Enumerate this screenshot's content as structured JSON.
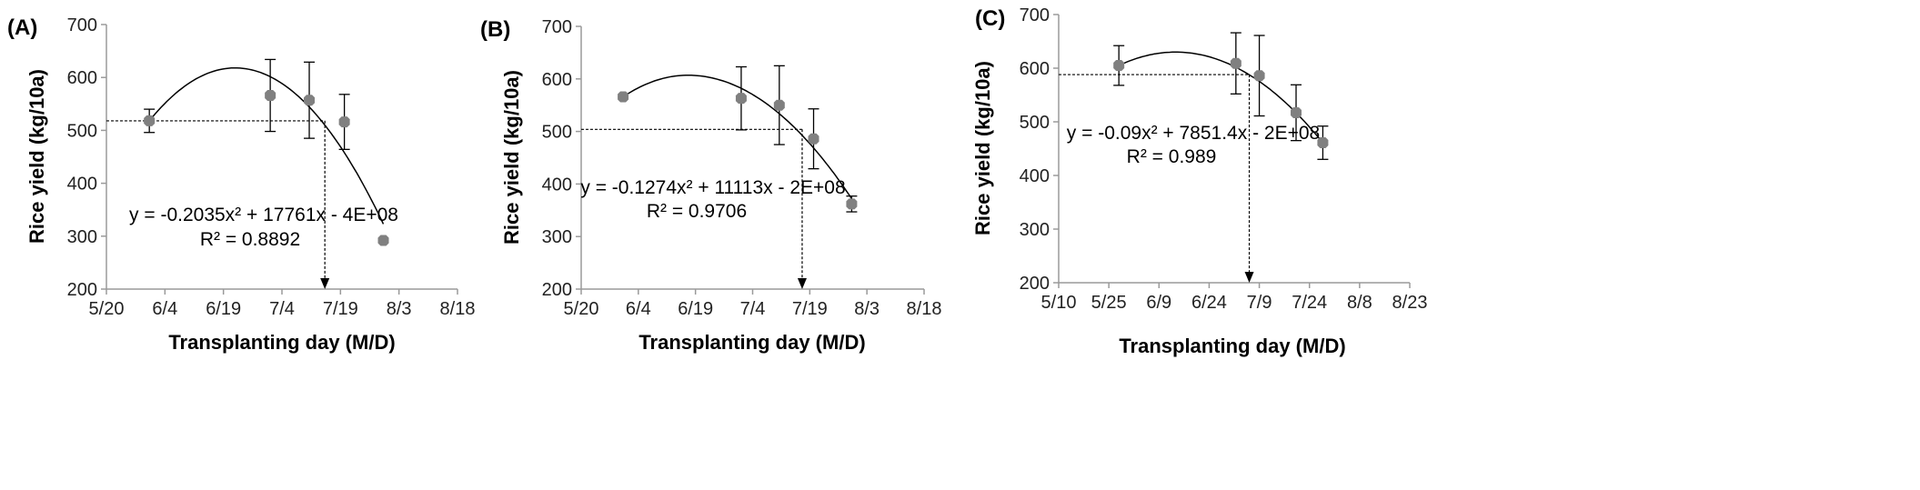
{
  "chart_data": [
    {
      "type": "scatter",
      "panel_label": "(A)",
      "xlabel": "Transplanting day (M/D)",
      "ylabel": "Rice yield (kg/10a)",
      "x_ticks": [
        "5/20",
        "6/4",
        "6/19",
        "7/4",
        "7/19",
        "8/3",
        "8/18"
      ],
      "ylim": [
        200,
        700
      ],
      "y_ticks": [
        "200",
        "300",
        "400",
        "500",
        "600",
        "700"
      ],
      "series": [
        {
          "x": [
            "5/31",
            "7/1",
            "7/11",
            "7/20",
            "7/30"
          ],
          "y": [
            518,
            566,
            557,
            516,
            292
          ],
          "error": [
            22,
            68,
            72,
            52,
            0
          ]
        }
      ],
      "trendline": {
        "equation": "y = -0.2035x² + 17761x - 4E+08",
        "r2": "R² = 0.8892",
        "vertex": [
          "6/22",
          618
        ],
        "start": [
          "5/31",
          518
        ],
        "end": [
          "7/30",
          323
        ]
      },
      "reference_y": 518,
      "reference_x": "7/15"
    },
    {
      "type": "scatter",
      "panel_label": "(B)",
      "xlabel": "Transplanting day (M/D)",
      "ylabel": "Rice yield (kg/10a)",
      "x_ticks": [
        "5/20",
        "6/4",
        "6/19",
        "7/4",
        "7/19",
        "8/3",
        "8/18"
      ],
      "ylim": [
        200,
        700
      ],
      "y_ticks": [
        "200",
        "300",
        "400",
        "500",
        "600",
        "700"
      ],
      "series": [
        {
          "x": [
            "5/31",
            "7/1",
            "7/11",
            "7/20",
            "7/30"
          ],
          "y": [
            566,
            563,
            550,
            486,
            362
          ],
          "error": [
            0,
            60,
            75,
            57,
            15
          ]
        }
      ],
      "trendline": {
        "equation": "y = -0.1274x² + 11113x - 2E+08",
        "r2": "R² = 0.9706",
        "vertex": [
          "6/17",
          607
        ],
        "start": [
          "5/31",
          566
        ],
        "end": [
          "7/30",
          372
        ]
      },
      "reference_y": 504,
      "reference_x": "7/17"
    },
    {
      "type": "scatter",
      "panel_label": "(C)",
      "xlabel": "Transplanting day (M/D)",
      "ylabel": "Rice yield (kg/10a)",
      "x_ticks": [
        "5/10",
        "5/25",
        "6/9",
        "6/24",
        "7/9",
        "7/24",
        "8/8",
        "8/23"
      ],
      "ylim": [
        200,
        700
      ],
      "y_ticks": [
        "200",
        "300",
        "400",
        "500",
        "600",
        "700"
      ],
      "series": [
        {
          "x": [
            "5/28",
            "7/2",
            "7/9",
            "7/20",
            "7/28"
          ],
          "y": [
            605,
            609,
            586,
            517,
            461
          ],
          "error": [
            37,
            57,
            75,
            52,
            31
          ]
        }
      ],
      "trendline": {
        "equation": "y = -0.09x² + 7851.4x - 2E+08",
        "r2": "R² = 0.989",
        "vertex": [
          "6/14",
          630
        ],
        "start": [
          "5/28",
          605
        ],
        "end": [
          "7/28",
          461
        ]
      },
      "reference_y": 588,
      "reference_x": "7/6"
    }
  ],
  "colors": {
    "marker": "#808080",
    "line": "#000000",
    "axis": "#9a9a9a"
  }
}
